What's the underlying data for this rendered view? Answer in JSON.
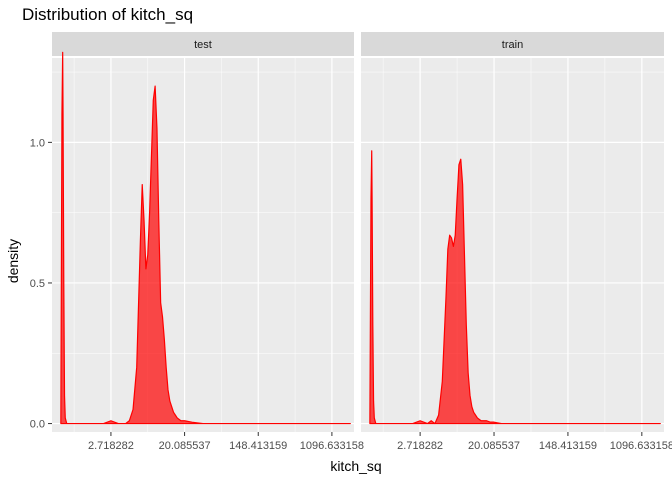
{
  "chart_data": {
    "type": "area",
    "title": "Distribution of kitch_sq",
    "xlabel": "kitch_sq",
    "ylabel": "density",
    "x_scale": "log",
    "xlim": [
      -0.6,
      7.6
    ],
    "ylim": [
      -0.03,
      1.3
    ],
    "x_ticks": [
      {
        "value": 1,
        "label": "2.718282"
      },
      {
        "value": 3,
        "label": "20.085537"
      },
      {
        "value": 5,
        "label": "148.413159"
      },
      {
        "value": 7,
        "label": "1096.633158"
      }
    ],
    "y_ticks": [
      {
        "value": 0.0,
        "label": "0.0"
      },
      {
        "value": 0.5,
        "label": "0.5"
      },
      {
        "value": 1.0,
        "label": "1.0"
      }
    ],
    "fill_color": "#ff0000",
    "fill_opacity": 0.7,
    "line_color": "#ff0000",
    "panel_background": "#ebebeb",
    "grid_color": "#ffffff",
    "strip_background": "#d9d9d9",
    "grid": true,
    "facets": [
      {
        "label": "test",
        "x": [
          -0.36,
          -0.33,
          -0.31,
          -0.3,
          -0.28,
          -0.26,
          -0.24,
          -0.2,
          -0.1,
          0.2,
          0.8,
          1.0,
          1.2,
          1.3,
          1.4,
          1.5,
          1.6,
          1.7,
          1.8,
          1.85,
          1.9,
          1.95,
          2.0,
          2.05,
          2.1,
          2.15,
          2.2,
          2.25,
          2.3,
          2.35,
          2.4,
          2.45,
          2.5,
          2.55,
          2.6,
          2.65,
          2.7,
          2.75,
          2.8,
          2.9,
          3.0,
          3.2,
          3.5,
          4.0,
          5.0,
          6.0,
          7.5
        ],
        "y": [
          0.0,
          1.1,
          1.32,
          1.1,
          0.5,
          0.1,
          0.02,
          0.0,
          0.0,
          0.0,
          0.0,
          0.01,
          0.0,
          0.0,
          0.0,
          0.01,
          0.05,
          0.2,
          0.65,
          0.85,
          0.72,
          0.55,
          0.6,
          0.75,
          0.95,
          1.15,
          1.2,
          1.05,
          0.72,
          0.43,
          0.38,
          0.3,
          0.2,
          0.12,
          0.08,
          0.06,
          0.04,
          0.03,
          0.02,
          0.01,
          0.01,
          0.005,
          0.0,
          0.0,
          0.0,
          0.0,
          0.0
        ]
      },
      {
        "label": "train",
        "x": [
          -0.36,
          -0.33,
          -0.31,
          -0.3,
          -0.28,
          -0.26,
          -0.24,
          -0.2,
          -0.1,
          0.2,
          0.8,
          1.0,
          1.2,
          1.3,
          1.4,
          1.5,
          1.6,
          1.7,
          1.75,
          1.8,
          1.85,
          1.9,
          1.95,
          2.0,
          2.05,
          2.1,
          2.15,
          2.2,
          2.25,
          2.3,
          2.35,
          2.4,
          2.45,
          2.5,
          2.55,
          2.6,
          2.65,
          2.7,
          2.8,
          2.9,
          3.0,
          3.2,
          3.5,
          4.0,
          5.0,
          6.0,
          7.5
        ],
        "y": [
          0.0,
          0.8,
          0.97,
          0.8,
          0.35,
          0.08,
          0.02,
          0.0,
          0.0,
          0.0,
          0.0,
          0.01,
          0.0,
          0.01,
          0.0,
          0.03,
          0.15,
          0.45,
          0.62,
          0.67,
          0.66,
          0.63,
          0.67,
          0.8,
          0.92,
          0.94,
          0.85,
          0.6,
          0.35,
          0.18,
          0.1,
          0.06,
          0.04,
          0.03,
          0.02,
          0.015,
          0.01,
          0.01,
          0.01,
          0.005,
          0.005,
          0.0,
          0.0,
          0.0,
          0.0,
          0.0,
          0.0
        ]
      }
    ]
  }
}
